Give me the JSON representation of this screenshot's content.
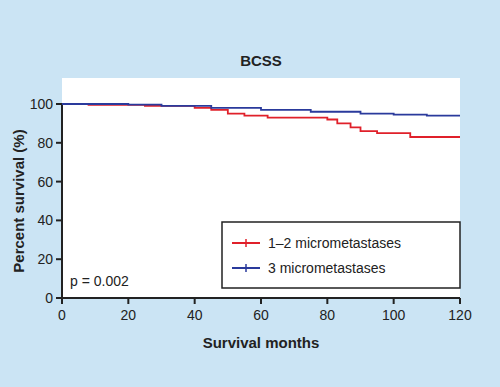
{
  "chart_data": {
    "type": "line",
    "title": "BCSS",
    "x_label": "Survival months",
    "y_label": "Percent survival (%)",
    "annotation": "p = 0.002",
    "xlim": [
      0,
      120
    ],
    "xticks": [
      0,
      20,
      40,
      60,
      80,
      100,
      120
    ],
    "ylim": [
      0,
      100
    ],
    "yticks": [
      0,
      20,
      40,
      60,
      80,
      100
    ],
    "legend": "bottom-right",
    "line_style": "step",
    "series": [
      {
        "name": "1–2 micrometastases",
        "color": "#e0202a",
        "x": [
          0,
          8,
          25,
          40,
          45,
          50,
          55,
          62,
          80,
          83,
          87,
          90,
          95,
          105,
          120
        ],
        "values": [
          100,
          99.5,
          99,
          98,
          97,
          95,
          94,
          93,
          92,
          90,
          88,
          86,
          85,
          83,
          83
        ]
      },
      {
        "name": "3 micrometastases",
        "color": "#2a3a9c",
        "x": [
          0,
          20,
          30,
          45,
          60,
          75,
          90,
          100,
          110,
          120
        ],
        "values": [
          100,
          99.7,
          99,
          98,
          97,
          96,
          95,
          94.5,
          94,
          93.5
        ]
      }
    ]
  }
}
